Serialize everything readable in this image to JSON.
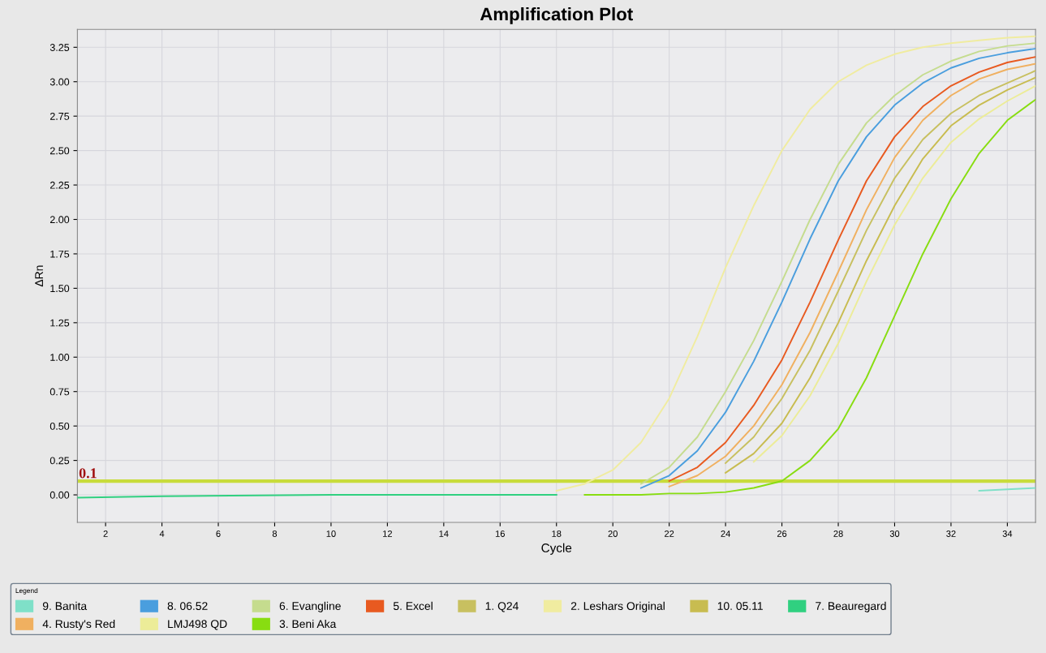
{
  "chart_data": {
    "type": "line",
    "title": "Amplification Plot",
    "xlabel": "Cycle",
    "ylabel": "ΔRn",
    "legend_title": "Legend",
    "x": [
      1,
      4,
      10,
      15,
      18,
      19,
      20,
      21,
      22,
      23,
      24,
      25,
      26,
      27,
      28,
      29,
      30,
      31,
      32,
      33,
      34,
      35
    ],
    "xlim": [
      1,
      35
    ],
    "xticks": [
      2,
      4,
      6,
      8,
      10,
      12,
      14,
      16,
      18,
      20,
      22,
      24,
      26,
      28,
      30,
      32,
      34
    ],
    "ylim": [
      -0.2,
      3.38
    ],
    "yticks": [
      {
        "value": 0,
        "label": "0.00"
      },
      {
        "value": 0.25,
        "label": "0.25"
      },
      {
        "value": 0.5,
        "label": "0.50"
      },
      {
        "value": 0.75,
        "label": "0.75"
      },
      {
        "value": 1,
        "label": "1.00"
      },
      {
        "value": 1.25,
        "label": "1.25"
      },
      {
        "value": 1.5,
        "label": "1.50"
      },
      {
        "value": 1.75,
        "label": "1.75"
      },
      {
        "value": 2,
        "label": "2.00"
      },
      {
        "value": 2.25,
        "label": "2.25"
      },
      {
        "value": 2.5,
        "label": "2.50"
      },
      {
        "value": 2.75,
        "label": "2.75"
      },
      {
        "value": 3,
        "label": "3.00"
      },
      {
        "value": 3.25,
        "label": "3.25"
      }
    ],
    "grid": true,
    "legend": "bottom",
    "marker": "none",
    "line_style": "solid",
    "ref_lines": [
      {
        "axis": "y",
        "value": 0.1,
        "label": "0.1",
        "color": "#c8dc3c"
      }
    ],
    "series": [
      {
        "name": "9. Banita",
        "color": "#7fe0c8",
        "values": [
          null,
          null,
          null,
          null,
          null,
          null,
          null,
          null,
          null,
          null,
          null,
          null,
          null,
          null,
          null,
          null,
          null,
          null,
          null,
          0.03,
          0.04,
          0.05
        ]
      },
      {
        "name": "8. 06.52",
        "color": "#4a9ede",
        "values": [
          null,
          null,
          null,
          null,
          null,
          null,
          null,
          0.05,
          0.14,
          0.32,
          0.6,
          0.97,
          1.4,
          1.86,
          2.28,
          2.6,
          2.83,
          2.99,
          3.1,
          3.17,
          3.21,
          3.24
        ]
      },
      {
        "name": "6. Evangline",
        "color": "#c5dc8e",
        "values": [
          null,
          null,
          null,
          null,
          null,
          null,
          null,
          0.08,
          0.2,
          0.42,
          0.75,
          1.12,
          1.55,
          2.0,
          2.4,
          2.7,
          2.9,
          3.05,
          3.15,
          3.22,
          3.26,
          3.28
        ]
      },
      {
        "name": "5. Excel",
        "color": "#e85a20",
        "values": [
          null,
          null,
          null,
          null,
          null,
          null,
          null,
          null,
          0.1,
          0.2,
          0.38,
          0.65,
          0.98,
          1.4,
          1.85,
          2.28,
          2.6,
          2.82,
          2.97,
          3.07,
          3.14,
          3.18
        ]
      },
      {
        "name": "1. Q24",
        "color": "#c8c060",
        "values": [
          null,
          null,
          null,
          null,
          null,
          null,
          null,
          null,
          null,
          null,
          0.23,
          0.42,
          0.7,
          1.05,
          1.48,
          1.92,
          2.3,
          2.58,
          2.77,
          2.9,
          2.99,
          3.08
        ]
      },
      {
        "name": "2. Leshars Original",
        "color": "#f0eca0",
        "values": [
          null,
          null,
          null,
          null,
          0.03,
          0.08,
          0.18,
          0.38,
          0.7,
          1.15,
          1.65,
          2.1,
          2.5,
          2.8,
          3.0,
          3.12,
          3.2,
          3.25,
          3.28,
          3.3,
          3.32,
          3.33
        ]
      },
      {
        "name": "10. 05.11",
        "color": "#c8bc50",
        "values": [
          null,
          null,
          null,
          null,
          null,
          null,
          null,
          null,
          null,
          null,
          0.16,
          0.3,
          0.52,
          0.85,
          1.25,
          1.7,
          2.1,
          2.44,
          2.68,
          2.83,
          2.94,
          3.03
        ]
      },
      {
        "name": "7. Beauregard",
        "color": "#30d080",
        "values": [
          -0.02,
          -0.01,
          0,
          0,
          0,
          null,
          null,
          null,
          null,
          null,
          null,
          null,
          null,
          null,
          null,
          null,
          null,
          null,
          null,
          null,
          null,
          null
        ]
      },
      {
        "name": "4. Rusty's Red",
        "color": "#f0b060",
        "values": [
          null,
          null,
          null,
          null,
          null,
          null,
          null,
          null,
          0.06,
          0.14,
          0.28,
          0.5,
          0.8,
          1.18,
          1.62,
          2.07,
          2.45,
          2.72,
          2.9,
          3.02,
          3.09,
          3.13
        ]
      },
      {
        "name": "LMJ498 QD",
        "color": "#ecec98",
        "values": [
          null,
          null,
          null,
          null,
          null,
          null,
          null,
          null,
          null,
          null,
          null,
          0.24,
          0.43,
          0.72,
          1.1,
          1.55,
          1.96,
          2.3,
          2.56,
          2.73,
          2.86,
          2.97
        ]
      },
      {
        "name": "3. Beni Aka",
        "color": "#88dd11",
        "values": [
          null,
          null,
          null,
          null,
          null,
          0,
          0,
          0,
          0.01,
          0.01,
          0.02,
          0.05,
          0.1,
          0.25,
          0.48,
          0.85,
          1.3,
          1.75,
          2.15,
          2.48,
          2.72,
          2.87
        ]
      }
    ]
  }
}
